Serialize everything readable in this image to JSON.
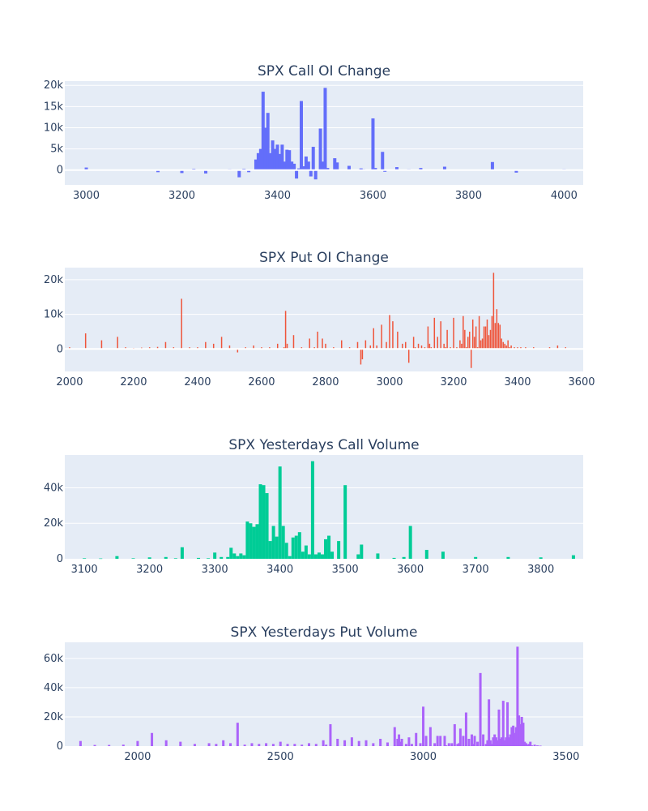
{
  "chart_data": [
    {
      "type": "bar",
      "title": "SPX Call OI Change",
      "color": "#636efa",
      "xlim": [
        2955,
        4040
      ],
      "ylim": [
        -3500,
        21000
      ],
      "xticks": [
        3000,
        3200,
        3400,
        3600,
        3800,
        4000
      ],
      "yticks": [
        0,
        5000,
        10000,
        15000,
        20000
      ],
      "ytick_labels": [
        "0",
        "5k",
        "10k",
        "15k",
        "20k"
      ],
      "bar_width": 4,
      "x": [
        3000,
        3075,
        3150,
        3200,
        3225,
        3250,
        3300,
        3320,
        3330,
        3340,
        3355,
        3360,
        3365,
        3370,
        3375,
        3380,
        3385,
        3390,
        3395,
        3400,
        3405,
        3410,
        3415,
        3420,
        3425,
        3430,
        3435,
        3440,
        3445,
        3450,
        3455,
        3460,
        3465,
        3470,
        3475,
        3480,
        3490,
        3495,
        3500,
        3505,
        3520,
        3525,
        3550,
        3575,
        3580,
        3600,
        3605,
        3620,
        3625,
        3650,
        3675,
        3700,
        3750,
        3800,
        3850,
        3900,
        4000
      ],
      "values": [
        600,
        100,
        -500,
        -700,
        300,
        -800,
        200,
        -1700,
        300,
        -500,
        2500,
        4000,
        5000,
        18500,
        10000,
        13500,
        4000,
        7000,
        5000,
        6000,
        3800,
        6000,
        2000,
        4800,
        4700,
        2000,
        1500,
        -2000,
        400,
        16300,
        900,
        3200,
        2000,
        -1500,
        5500,
        -2200,
        9800,
        2000,
        19400,
        500,
        2800,
        1800,
        1000,
        400,
        200,
        12200,
        500,
        4300,
        -400,
        700,
        200,
        500,
        800,
        100,
        1900,
        -600,
        200
      ]
    },
    {
      "type": "bar",
      "title": "SPX Put OI Change",
      "color": "#ef553b",
      "xlim": [
        1985,
        3605
      ],
      "ylim": [
        -6500,
        23500
      ],
      "xticks": [
        2000,
        2200,
        2400,
        2600,
        2800,
        3000,
        3200,
        3400,
        3600
      ],
      "yticks": [
        0,
        10000,
        20000
      ],
      "ytick_labels": [
        "0",
        "10k",
        "20k"
      ],
      "bar_width": 1.5,
      "x": [
        2000,
        2050,
        2100,
        2150,
        2175,
        2200,
        2225,
        2250,
        2275,
        2300,
        2325,
        2350,
        2375,
        2400,
        2425,
        2450,
        2475,
        2500,
        2525,
        2550,
        2575,
        2600,
        2625,
        2650,
        2670,
        2675,
        2680,
        2700,
        2725,
        2750,
        2765,
        2775,
        2790,
        2800,
        2825,
        2850,
        2875,
        2900,
        2910,
        2915,
        2925,
        2940,
        2950,
        2960,
        2975,
        2990,
        3000,
        3010,
        3025,
        3040,
        3050,
        3060,
        3075,
        3080,
        3090,
        3100,
        3110,
        3120,
        3125,
        3130,
        3140,
        3150,
        3160,
        3170,
        3175,
        3180,
        3190,
        3200,
        3210,
        3220,
        3225,
        3230,
        3235,
        3240,
        3245,
        3250,
        3255,
        3260,
        3265,
        3270,
        3275,
        3280,
        3285,
        3290,
        3295,
        3300,
        3305,
        3310,
        3315,
        3320,
        3325,
        3330,
        3335,
        3340,
        3345,
        3350,
        3355,
        3360,
        3365,
        3370,
        3375,
        3380,
        3390,
        3400,
        3410,
        3425,
        3450,
        3500,
        3525,
        3550
      ],
      "values": [
        500,
        4500,
        2500,
        3500,
        500,
        300,
        400,
        500,
        600,
        2000,
        500,
        14500,
        500,
        500,
        2000,
        1500,
        3500,
        1000,
        -1000,
        500,
        1000,
        500,
        500,
        1500,
        500,
        11000,
        1500,
        4000,
        500,
        3000,
        500,
        5000,
        3000,
        1500,
        500,
        2500,
        500,
        2000,
        -4500,
        -3000,
        2500,
        1000,
        6000,
        1000,
        7000,
        2000,
        9800,
        8000,
        5000,
        1500,
        2000,
        -4000,
        3500,
        500,
        1500,
        1000,
        500,
        6500,
        1500,
        500,
        9000,
        3500,
        8000,
        1500,
        500,
        5500,
        500,
        9000,
        500,
        2500,
        1500,
        9500,
        5500,
        500,
        3500,
        5000,
        -5500,
        8500,
        3500,
        6500,
        500,
        9500,
        2500,
        3000,
        6500,
        6500,
        8500,
        4000,
        5500,
        9500,
        22000,
        7500,
        11500,
        7500,
        7000,
        3000,
        2000,
        1500,
        1000,
        2500,
        500,
        1000,
        500,
        500,
        500,
        500,
        500,
        500,
        1000,
        500
      ]
    },
    {
      "type": "bar",
      "title": "SPX Yesterdays Call Volume",
      "color": "#00cc96",
      "xlim": [
        3070,
        3865
      ],
      "ylim": [
        0,
        58500
      ],
      "xticks": [
        3100,
        3200,
        3300,
        3400,
        3500,
        3600,
        3700,
        3800
      ],
      "yticks": [
        0,
        20000,
        40000
      ],
      "ytick_labels": [
        "0",
        "20k",
        "40k"
      ],
      "bar_width": 4,
      "x": [
        3100,
        3125,
        3150,
        3175,
        3200,
        3225,
        3240,
        3250,
        3275,
        3290,
        3300,
        3310,
        3320,
        3325,
        3330,
        3335,
        3340,
        3345,
        3350,
        3355,
        3360,
        3365,
        3370,
        3375,
        3380,
        3385,
        3390,
        3395,
        3400,
        3405,
        3410,
        3415,
        3420,
        3425,
        3430,
        3435,
        3440,
        3445,
        3450,
        3455,
        3460,
        3465,
        3470,
        3475,
        3480,
        3490,
        3500,
        3520,
        3525,
        3550,
        3575,
        3590,
        3600,
        3625,
        3650,
        3700,
        3750,
        3800,
        3850
      ],
      "values": [
        300,
        200,
        1500,
        300,
        800,
        1000,
        300,
        6500,
        500,
        300,
        3500,
        1000,
        1000,
        6200,
        3000,
        1500,
        3000,
        2000,
        21000,
        20000,
        18000,
        19500,
        42000,
        41500,
        37000,
        10000,
        18500,
        12500,
        52000,
        18500,
        9000,
        1500,
        12000,
        13000,
        15000,
        4000,
        7500,
        2500,
        55000,
        2500,
        3500,
        2500,
        11000,
        13000,
        4000,
        10000,
        41500,
        2500,
        8000,
        3000,
        500,
        1000,
        18500,
        5000,
        4000,
        1000,
        1000,
        800,
        2000
      ]
    },
    {
      "type": "bar",
      "title": "SPX Yesterdays Put Volume",
      "color": "#ab63fa",
      "xlim": [
        1745,
        3560
      ],
      "ylim": [
        0,
        71000
      ],
      "xticks": [
        2000,
        2500,
        3000,
        3500
      ],
      "ytick_labels": [
        "0",
        "20k",
        "40k",
        "60k"
      ],
      "yticks": [
        0,
        20000,
        40000,
        60000
      ],
      "bar_width": 3,
      "x": [
        1800,
        1850,
        1900,
        1950,
        2000,
        2050,
        2100,
        2150,
        2200,
        2250,
        2275,
        2300,
        2325,
        2350,
        2375,
        2400,
        2425,
        2450,
        2475,
        2500,
        2525,
        2550,
        2575,
        2600,
        2625,
        2650,
        2660,
        2675,
        2700,
        2725,
        2750,
        2775,
        2800,
        2825,
        2850,
        2875,
        2900,
        2910,
        2915,
        2920,
        2925,
        2940,
        2950,
        2960,
        2975,
        2990,
        3000,
        3010,
        3025,
        3040,
        3050,
        3060,
        3075,
        3080,
        3090,
        3100,
        3110,
        3120,
        3125,
        3130,
        3140,
        3150,
        3160,
        3170,
        3175,
        3180,
        3190,
        3200,
        3210,
        3220,
        3225,
        3230,
        3235,
        3240,
        3245,
        3250,
        3255,
        3260,
        3265,
        3270,
        3275,
        3280,
        3285,
        3290,
        3295,
        3300,
        3305,
        3310,
        3315,
        3320,
        3325,
        3330,
        3335,
        3340,
        3345,
        3350,
        3355,
        3360,
        3365,
        3370,
        3375,
        3380,
        3390,
        3400,
        3410
      ],
      "values": [
        3500,
        800,
        800,
        1000,
        3500,
        9000,
        4000,
        3000,
        1500,
        2000,
        1500,
        4000,
        2000,
        16000,
        1000,
        2000,
        1500,
        2000,
        1500,
        3000,
        1500,
        1500,
        1000,
        2000,
        1500,
        4000,
        1000,
        15000,
        5000,
        4000,
        6000,
        3500,
        4000,
        2000,
        5000,
        2500,
        13000,
        5000,
        8000,
        3000,
        5000,
        1500,
        6000,
        1500,
        9000,
        2000,
        27000,
        7000,
        13000,
        2000,
        7000,
        7000,
        7000,
        500,
        2000,
        2000,
        15000,
        1500,
        2000,
        12000,
        7000,
        23000,
        5000,
        8000,
        1500,
        7000,
        3000,
        50000,
        8000,
        1500,
        4000,
        32000,
        4000,
        1500,
        6000,
        8000,
        6000,
        4000,
        25000,
        5000,
        6000,
        31000,
        4000,
        6000,
        30000,
        6000,
        8000,
        13000,
        14000,
        9000,
        13000,
        68000,
        21000,
        15000,
        20000,
        16000,
        3000,
        2000,
        1000,
        1500,
        3000,
        500,
        1000,
        500,
        300
      ]
    }
  ]
}
